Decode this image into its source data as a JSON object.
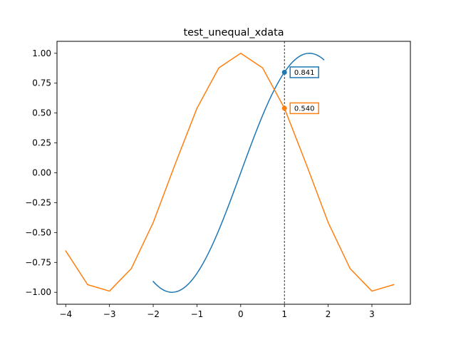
{
  "chart_data": {
    "type": "line",
    "title": "test_unequal_xdata",
    "xlabel": "",
    "ylabel": "",
    "xlim": [
      -4.2,
      3.88
    ],
    "ylim": [
      -1.1,
      1.1
    ],
    "xticks": [
      -4,
      -3,
      -2,
      -1,
      0,
      1,
      2,
      3
    ],
    "yticks": [
      -1.0,
      -0.75,
      -0.5,
      -0.25,
      0.0,
      0.25,
      0.5,
      0.75,
      1.0
    ],
    "xtick_labels": [
      "−4",
      "−3",
      "−2",
      "−1",
      "0",
      "1",
      "2",
      "3"
    ],
    "ytick_labels": [
      "−1.00",
      "−0.75",
      "−0.50",
      "−0.25",
      "0.00",
      "0.25",
      "0.50",
      "0.75",
      "1.00"
    ],
    "grid": false,
    "colors": {
      "series1": "#1f77b4",
      "series2": "#ff7f0e",
      "cursor": "#000000"
    },
    "series": [
      {
        "function": "sin",
        "x_start": -2.0,
        "x_end": 1.9,
        "x_step": 0.05
      },
      {
        "function": "cos",
        "x": [
          -4.0,
          -3.5,
          -3.0,
          -2.5,
          -2.0,
          -1.5,
          -1.0,
          -0.5,
          0.0,
          0.5,
          1.0,
          1.5,
          2.0,
          2.5,
          3.0,
          3.5
        ],
        "y": [
          -0.654,
          -0.936,
          -0.99,
          -0.801,
          -0.416,
          0.071,
          0.54,
          0.878,
          1.0,
          0.878,
          0.54,
          0.071,
          -0.416,
          -0.801,
          -0.99,
          -0.936
        ]
      }
    ],
    "cursor": {
      "x": 1.0,
      "markers": [
        {
          "series": 0,
          "y": 0.841,
          "label": "0.841"
        },
        {
          "series": 1,
          "y": 0.54,
          "label": "0.540"
        }
      ]
    }
  }
}
